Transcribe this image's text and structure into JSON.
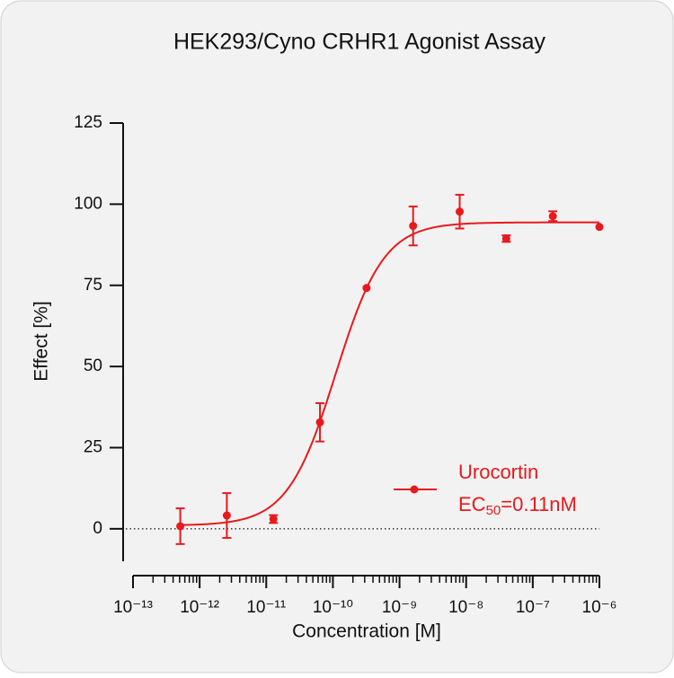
{
  "chart_data": {
    "type": "dose-response",
    "title": "HEK293/Cyno CRHR1 Agonist Assay",
    "xlabel": "Concentration [M]",
    "ylabel": "Effect  [%]",
    "xscale": "log",
    "xlim": [
      1e-13,
      1e-06
    ],
    "xticks": [
      {
        "value": 1e-13,
        "label": "10⁻¹³"
      },
      {
        "value": 1e-12,
        "label": "10⁻¹²"
      },
      {
        "value": 1e-11,
        "label": "10⁻¹¹"
      },
      {
        "value": 1e-10,
        "label": "10⁻¹⁰"
      },
      {
        "value": 1e-09,
        "label": "10⁻⁹"
      },
      {
        "value": 1e-08,
        "label": "10⁻⁸"
      },
      {
        "value": 1e-07,
        "label": "10⁻⁷"
      },
      {
        "value": 1e-06,
        "label": "10⁻⁶"
      }
    ],
    "xminorticks": true,
    "ylim": [
      -10,
      125
    ],
    "yticks": [
      0,
      25,
      50,
      75,
      100,
      125
    ],
    "zero_line": true,
    "series": [
      {
        "name": "Urocortin",
        "color": "#e8191c",
        "x": [
          5.12e-13,
          2.56e-12,
          1.28e-11,
          6.4e-11,
          3.2e-10,
          1.6e-09,
          8e-09,
          4e-08,
          2e-07,
          1e-06
        ],
        "values": [
          0.8,
          4.1,
          3.0,
          32.8,
          74.2,
          93.3,
          97.7,
          89.4,
          96.3,
          93.0
        ],
        "errors": [
          5.5,
          6.9,
          1.2,
          5.9,
          0,
          6,
          5.2,
          1,
          1.5,
          0
        ]
      }
    ],
    "fit": {
      "bottom": 1,
      "top": 94.4,
      "ec50": 1.1e-10,
      "hill": 1.2
    },
    "ec50_label": {
      "prefix": "EC",
      "subscript": "50",
      "suffix": "=0.11nM"
    }
  }
}
